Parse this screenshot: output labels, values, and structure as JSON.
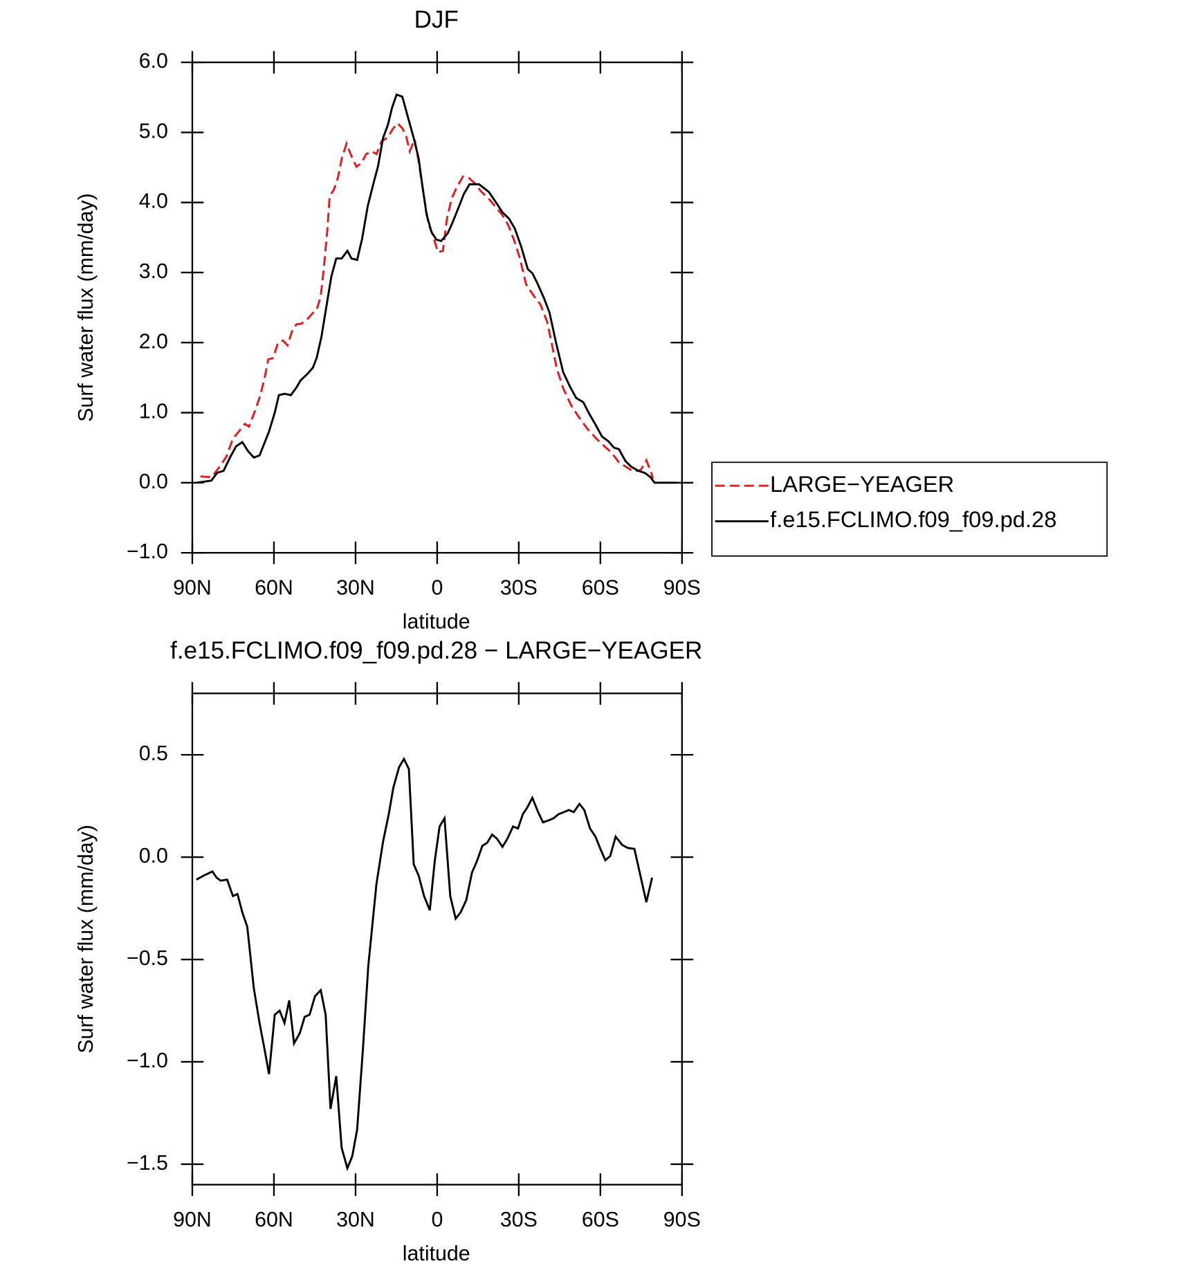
{
  "chart_data": [
    {
      "type": "line",
      "title": "DJF",
      "xlabel": "latitude",
      "ylabel": "Surf water flux (mm/day)",
      "xlim": [
        90,
        -90
      ],
      "xticks": [
        {
          "value": 90,
          "label": "90N"
        },
        {
          "value": 60,
          "label": "60N"
        },
        {
          "value": 30,
          "label": "30N"
        },
        0,
        {
          "value": -30,
          "label": "30S"
        },
        {
          "value": -60,
          "label": "60S"
        },
        {
          "value": -90,
          "label": "90S"
        }
      ],
      "ylim": [
        -1,
        6
      ],
      "yticks": [
        {
          "value": 6,
          "label": "6.0"
        },
        {
          "value": 5,
          "label": "5.0"
        },
        {
          "value": 4,
          "label": "4.0"
        },
        {
          "value": 3,
          "label": "3.0"
        },
        {
          "value": 2,
          "label": "2.0"
        },
        {
          "value": 1,
          "label": "1.0"
        },
        {
          "value": 0,
          "label": "0.0"
        },
        {
          "value": -1,
          "label": "−1.0"
        }
      ],
      "legend": "right",
      "series": [
        {
          "name": "LARGE−YEAGER",
          "color": "#e41a1c",
          "dash": true,
          "x": [
            87,
            82.9,
            80.5,
            77.5,
            75.1,
            72.5,
            70.7,
            69.2,
            66.8,
            65,
            63.3,
            62.1,
            60.3,
            58.5,
            56.7,
            55,
            53.2,
            51.7,
            49.9,
            47.8,
            46,
            44.3,
            42.8,
            41.6,
            40.4,
            39.5,
            38,
            36.5,
            35,
            33.3,
            31.8,
            29.7,
            27.9,
            26.1,
            24.1,
            22.3,
            20.5,
            18.1,
            16.3,
            14.6,
            12.8,
            11.3,
            10.1,
            8.3,
            6.8,
            5,
            3.3,
            1.5,
            -0.3,
            -2.1,
            -3.6,
            -5.3,
            -7.1,
            -9.5,
            -11.6,
            -14,
            -16.1,
            -18.8,
            -21.4,
            -23.8,
            -26.1,
            -28.2,
            -30.3,
            -32.7,
            -35.3,
            -38,
            -40.4,
            -42.2,
            -43.9,
            -46.3,
            -49.3,
            -52.2,
            -55.2,
            -58.5,
            -61.5,
            -64.1,
            -66.8,
            -69.7,
            -72.1,
            -74.8,
            -76.9,
            -78.7,
            -79.3
          ],
          "values": [
            0.09,
            0.08,
            0.2,
            0.37,
            0.63,
            0.75,
            0.84,
            0.8,
            1.04,
            1.25,
            1.52,
            1.76,
            1.78,
            2.0,
            2.03,
            1.96,
            2.18,
            2.26,
            2.27,
            2.33,
            2.41,
            2.47,
            2.66,
            3.08,
            3.6,
            4.09,
            4.18,
            4.35,
            4.64,
            4.84,
            4.69,
            4.51,
            4.56,
            4.69,
            4.73,
            4.69,
            4.87,
            4.93,
            5.05,
            5.13,
            5.06,
            4.93,
            4.73,
            4.9,
            4.58,
            4.12,
            3.71,
            3.52,
            3.29,
            3.31,
            3.77,
            4.05,
            4.21,
            4.37,
            4.35,
            4.27,
            4.16,
            4.06,
            3.94,
            3.83,
            3.68,
            3.47,
            3.22,
            2.83,
            2.68,
            2.54,
            2.3,
            1.97,
            1.64,
            1.35,
            1.1,
            0.93,
            0.77,
            0.63,
            0.52,
            0.43,
            0.29,
            0.22,
            0.16,
            0.18,
            0.32,
            0.14,
            0.06
          ]
        },
        {
          "name": "f.e15.FCLIMO.f09_f09.pd.28",
          "color": "#000000",
          "dash": false,
          "x": [
            88.5,
            83,
            80.9,
            78.5,
            76,
            73.9,
            71.6,
            69.5,
            67.4,
            65.3,
            61.8,
            59.7,
            58.2,
            56.1,
            53.8,
            51.7,
            50.2,
            47.8,
            45.7,
            44.3,
            42.5,
            41,
            38.9,
            37.1,
            35.1,
            33,
            31.5,
            29.4,
            27.6,
            25.5,
            23.5,
            21.7,
            19.9,
            18.1,
            16.6,
            14.9,
            12.8,
            10.7,
            8.6,
            6.8,
            5.4,
            3.9,
            2.1,
            0.3,
            -1.5,
            -3.9,
            -5.6,
            -7.7,
            -9.8,
            -11.9,
            -15.4,
            -19,
            -22,
            -24,
            -26.4,
            -28.5,
            -30.9,
            -33.3,
            -35,
            -36.8,
            -39.2,
            -41.3,
            -43.7,
            -46.3,
            -48.7,
            -51.1,
            -53.7,
            -55.8,
            -58.2,
            -60.6,
            -63,
            -65,
            -66.8,
            -69.2,
            -71.3,
            -73.9,
            -76.3,
            -78.4,
            -79.9,
            -82.8,
            -88.2
          ],
          "values": [
            0,
            0.03,
            0.14,
            0.17,
            0.37,
            0.52,
            0.58,
            0.45,
            0.36,
            0.39,
            0.73,
            1.0,
            1.25,
            1.27,
            1.25,
            1.36,
            1.46,
            1.55,
            1.64,
            1.78,
            2.09,
            2.45,
            2.94,
            3.2,
            3.2,
            3.31,
            3.2,
            3.18,
            3.48,
            3.95,
            4.26,
            4.52,
            4.92,
            5.11,
            5.35,
            5.54,
            5.51,
            5.21,
            4.92,
            4.63,
            4.23,
            3.83,
            3.58,
            3.47,
            3.45,
            3.56,
            3.71,
            3.91,
            4.12,
            4.26,
            4.26,
            4.15,
            3.98,
            3.86,
            3.77,
            3.63,
            3.37,
            3.05,
            2.99,
            2.85,
            2.64,
            2.43,
            2.0,
            1.58,
            1.38,
            1.21,
            1.15,
            0.99,
            0.83,
            0.66,
            0.59,
            0.5,
            0.48,
            0.31,
            0.23,
            0.17,
            0.14,
            0.08,
            0,
            0,
            0
          ]
        }
      ]
    },
    {
      "type": "line",
      "title": "f.e15.FCLIMO.f09_f09.pd.28 − LARGE−YEAGER",
      "xlabel": "latitude",
      "ylabel": "Surf water flux (mm/day)",
      "xlim": [
        90,
        -90
      ],
      "xticks": [
        {
          "value": 90,
          "label": "90N"
        },
        {
          "value": 60,
          "label": "60N"
        },
        {
          "value": 30,
          "label": "30N"
        },
        0,
        {
          "value": -30,
          "label": "30S"
        },
        {
          "value": -60,
          "label": "60S"
        },
        {
          "value": -90,
          "label": "90S"
        }
      ],
      "ylim": [
        -1.6,
        0.8
      ],
      "yticks": [
        0.5,
        {
          "value": 0,
          "label": "0.0"
        },
        {
          "value": -0.5,
          "label": "−0.5"
        },
        {
          "value": -1,
          "label": "−1.0"
        },
        {
          "value": -1.5,
          "label": "−1.5"
        }
      ],
      "series": [
        {
          "color": "#000000",
          "dash": false,
          "x": [
            88.5,
            85.8,
            82.6,
            81.1,
            79.6,
            77.2,
            75.1,
            73.4,
            71.6,
            69.8,
            67.4,
            65.3,
            63.3,
            61.8,
            59.7,
            57.9,
            56.1,
            54.4,
            52.6,
            50.5,
            48.7,
            46.9,
            44.9,
            42.8,
            41,
            39.2,
            37.1,
            35.1,
            33,
            31.2,
            29.4,
            27.3,
            25.3,
            22.3,
            19.9,
            17.8,
            16.1,
            14,
            12.2,
            10.4,
            8.6,
            6.8,
            4.8,
            2.7,
            0.9,
            -0.9,
            -2.7,
            -4.8,
            -6.8,
            -8.6,
            -10.7,
            -12.8,
            -14.6,
            -16.6,
            -18.4,
            -20.2,
            -22,
            -24,
            -25.8,
            -27.9,
            -29.7,
            -31.5,
            -33,
            -35,
            -37.1,
            -38.9,
            -41,
            -42.8,
            -44.6,
            -46.6,
            -48.4,
            -50.2,
            -52.3,
            -54.1,
            -56.2,
            -58.2,
            -60,
            -61.8,
            -63.6,
            -65.6,
            -68,
            -70.1,
            -72.5,
            -76.9,
            -79
          ],
          "values": [
            -0.11,
            -0.09,
            -0.07,
            -0.1,
            -0.115,
            -0.11,
            -0.19,
            -0.18,
            -0.27,
            -0.34,
            -0.64,
            -0.81,
            -0.95,
            -1.06,
            -0.77,
            -0.75,
            -0.81,
            -0.7,
            -0.91,
            -0.86,
            -0.78,
            -0.77,
            -0.68,
            -0.65,
            -0.77,
            -1.23,
            -1.07,
            -1.42,
            -1.52,
            -1.46,
            -1.33,
            -0.94,
            -0.53,
            -0.13,
            0.075,
            0.21,
            0.34,
            0.44,
            0.48,
            0.43,
            -0.035,
            -0.09,
            -0.19,
            -0.26,
            -0.02,
            0.15,
            0.19,
            -0.19,
            -0.3,
            -0.27,
            -0.21,
            -0.075,
            -0.02,
            0.055,
            0.07,
            0.11,
            0.09,
            0.05,
            0.09,
            0.15,
            0.14,
            0.21,
            0.24,
            0.29,
            0.22,
            0.17,
            0.18,
            0.19,
            0.21,
            0.22,
            0.23,
            0.22,
            0.26,
            0.23,
            0.14,
            0.1,
            0.04,
            -0.015,
            0.005,
            0.1,
            0.06,
            0.045,
            0.04,
            -0.22,
            -0.1
          ]
        }
      ]
    }
  ]
}
